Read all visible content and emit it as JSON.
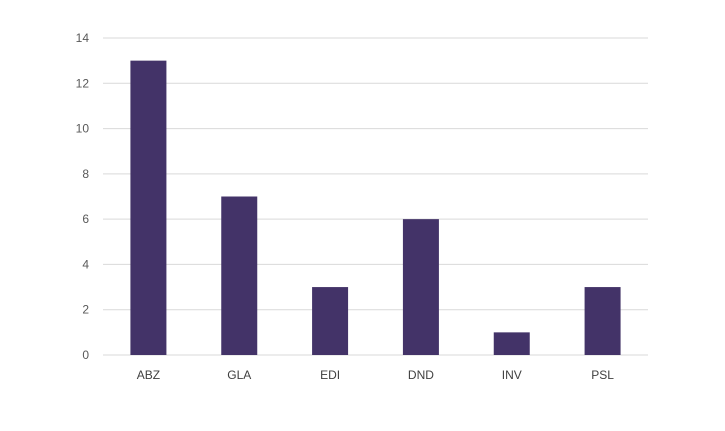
{
  "chart_data": {
    "type": "bar",
    "categories": [
      "ABZ",
      "GLA",
      "EDI",
      "DND",
      "INV",
      "PSL"
    ],
    "values": [
      13,
      7,
      3,
      6,
      1,
      3
    ],
    "ylim": [
      0,
      14
    ],
    "yticks": [
      0,
      2,
      4,
      6,
      8,
      10,
      12,
      14
    ],
    "ytick_labels": [
      "0",
      "2",
      "4",
      "6",
      "8",
      "10",
      "12",
      "14"
    ],
    "grid": true,
    "legend": "none",
    "colors": {
      "bar": "#433368",
      "grid": "#d9d9d9",
      "axis": "#d9d9d9"
    }
  }
}
